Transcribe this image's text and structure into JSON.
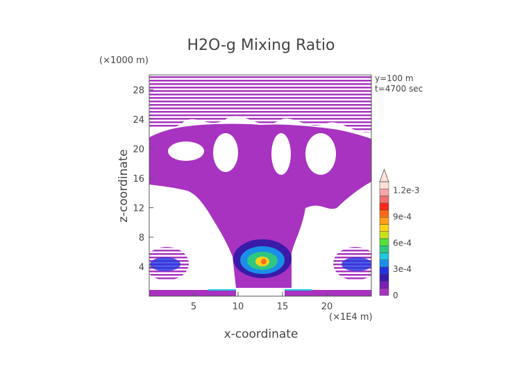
{
  "chart_data": {
    "type": "heatmap",
    "title": "H2O-g Mixing Ratio",
    "xlabel": "x-coordinate",
    "ylabel": "z-coordinate",
    "x_unit": "(×1E4 m)",
    "y_unit": "(×1000 m)",
    "annotations": [
      "y=100 m",
      "t=4700 sec"
    ],
    "xlim": [
      0,
      25
    ],
    "ylim": [
      0,
      30
    ],
    "x_ticks": [
      5,
      10,
      15,
      20
    ],
    "x_tick_labels": [
      "5",
      "10",
      "15",
      "20"
    ],
    "y_ticks": [
      4,
      8,
      12,
      16,
      20,
      24,
      28
    ],
    "y_tick_labels": [
      "4",
      "8",
      "12",
      "16",
      "20",
      "24",
      "28"
    ],
    "colorbar": {
      "range": [
        0,
        0.0013
      ],
      "tick_values": [
        0,
        0.0003,
        0.0006,
        0.0009,
        0.0012
      ],
      "tick_labels": [
        "0",
        "3e-4",
        "6e-4",
        "9e-4",
        "1.2e-3"
      ],
      "extend": "max",
      "colors": [
        "#a833c0",
        "#7a1fb3",
        "#3a1aa8",
        "#2233e0",
        "#1a8fe8",
        "#20c8e0",
        "#30c880",
        "#58e03a",
        "#c8e020",
        "#ffd21a",
        "#ff9f1a",
        "#ff6a1a",
        "#ff2a1a",
        "#f07070",
        "#f6a8a8",
        "#fde0d8"
      ]
    },
    "field_color": "#a833c0",
    "grid": false
  }
}
